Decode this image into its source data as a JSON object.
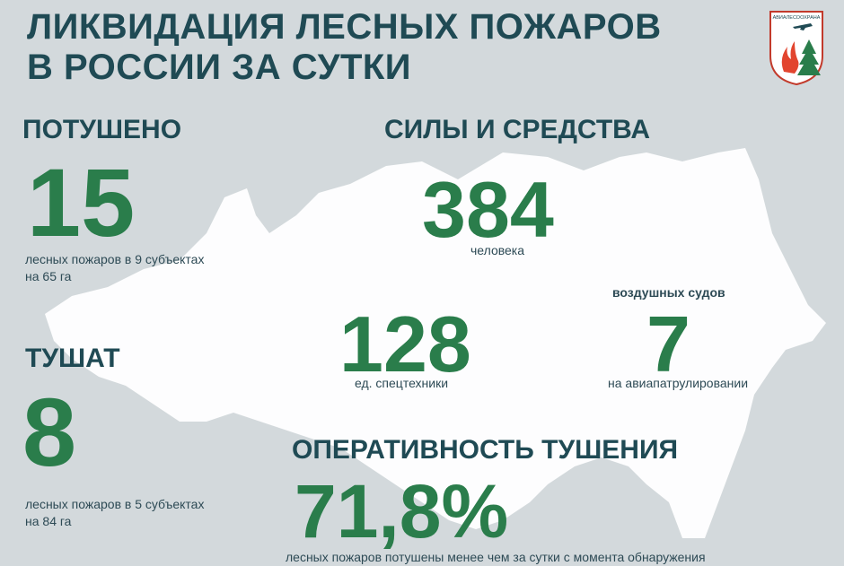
{
  "header": {
    "title_line1": "ЛИКВИДАЦИЯ ЛЕСНЫХ ПОЖАРОВ",
    "title_line2": "В РОССИИ ЗА СУТКИ",
    "logo_text": "АВИАЛЕСООХРАНА"
  },
  "extinguished": {
    "heading": "ПОТУШЕНО",
    "value": "15",
    "caption_line1": "лесных  пожаров в 9 субъектах",
    "caption_line2": "на 65 га"
  },
  "forces": {
    "heading": "СИЛЫ И СРЕДСТВА",
    "people_value": "384",
    "people_caption": "человека",
    "equipment_value": "128",
    "equipment_caption": "ед. спецтехники",
    "aircraft_caption_top": "воздушных судов",
    "aircraft_value": "7",
    "aircraft_caption": "на авиапатрулировании"
  },
  "fighting": {
    "heading": "ТУШАТ",
    "value": "8",
    "caption_line1": "лесных  пожаров в 5 субъектах",
    "caption_line2": "на 84 га"
  },
  "efficiency": {
    "heading": "ОПЕРАТИВНОСТЬ  ТУШЕНИЯ",
    "value": "71,8%",
    "caption": "лесных  пожаров потушены  менее чем за сутки  с момента обнаружения"
  },
  "colors": {
    "title": "#1f4a54",
    "number": "#2a7d4b",
    "background": "#d3d9dc",
    "map": "#ffffff"
  },
  "icons": [
    "russia-map-silhouette",
    "avialesookhrana-logo-icon"
  ]
}
